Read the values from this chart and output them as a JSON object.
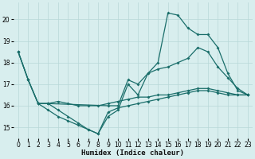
{
  "bg_color": "#d8eeee",
  "grid_color": "#b8d8d8",
  "line_color": "#1a6e6a",
  "xlabel": "Humidex (Indice chaleur)",
  "ylim": [
    14.5,
    20.8
  ],
  "xlim": [
    -0.5,
    23.5
  ],
  "yticks": [
    15,
    16,
    17,
    18,
    19,
    20
  ],
  "xticks": [
    0,
    1,
    2,
    3,
    4,
    5,
    6,
    7,
    8,
    9,
    10,
    11,
    12,
    13,
    14,
    15,
    16,
    17,
    18,
    19,
    20,
    21,
    22,
    23
  ],
  "series": [
    {
      "x": [
        0,
        1,
        2,
        3,
        4,
        5,
        6,
        7,
        8,
        9,
        10,
        11,
        12,
        13,
        14,
        15,
        16,
        17,
        18,
        19,
        20,
        21,
        22,
        23
      ],
      "y": [
        18.5,
        17.2,
        16.1,
        16.1,
        16.2,
        16.1,
        16.0,
        16.0,
        16.0,
        16.1,
        16.2,
        16.3,
        16.4,
        16.4,
        16.5,
        16.5,
        16.6,
        16.7,
        16.8,
        16.8,
        16.7,
        16.6,
        16.5,
        16.5
      ]
    },
    {
      "x": [
        0,
        1,
        2,
        3,
        4,
        5,
        6,
        7,
        8,
        9,
        10,
        11,
        12,
        13,
        14,
        15,
        16,
        17,
        18,
        19,
        20,
        21,
        22,
        23
      ],
      "y": [
        18.5,
        17.2,
        16.1,
        15.8,
        15.5,
        15.3,
        15.1,
        14.9,
        14.7,
        15.5,
        15.8,
        17.0,
        16.5,
        17.5,
        17.7,
        17.8,
        18.0,
        18.2,
        18.7,
        18.5,
        17.8,
        17.3,
        16.8,
        16.5
      ]
    },
    {
      "x": [
        0,
        1,
        2,
        3,
        9,
        10,
        11,
        12,
        13,
        14,
        15,
        16,
        17,
        18,
        19,
        20,
        21,
        22,
        23
      ],
      "y": [
        18.5,
        17.2,
        16.1,
        16.1,
        16.0,
        16.0,
        17.2,
        17.0,
        17.5,
        18.0,
        20.3,
        20.2,
        19.6,
        19.3,
        19.3,
        18.7,
        17.5,
        16.7,
        16.5
      ]
    },
    {
      "x": [
        2,
        3,
        4,
        5,
        6,
        7,
        8,
        9,
        10,
        11,
        12,
        13,
        14,
        15,
        16,
        17,
        18,
        19,
        20,
        21,
        22,
        23
      ],
      "y": [
        16.1,
        16.1,
        15.8,
        15.5,
        15.2,
        14.9,
        14.7,
        15.7,
        15.9,
        16.0,
        16.1,
        16.2,
        16.3,
        16.4,
        16.5,
        16.6,
        16.7,
        16.7,
        16.6,
        16.5,
        16.5,
        16.5
      ]
    }
  ]
}
